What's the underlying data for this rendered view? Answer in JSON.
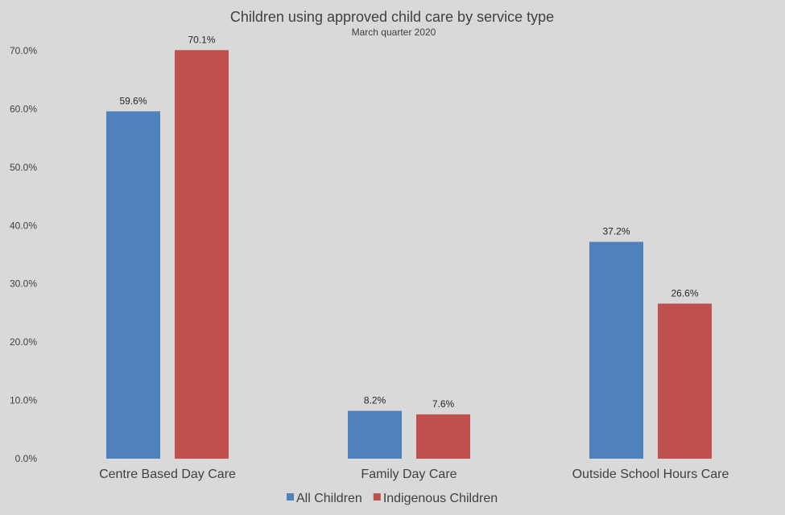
{
  "chart_data": {
    "type": "bar",
    "title": "Children using approved child care by service type",
    "subtitle": "March quarter 2020",
    "xlabel": "",
    "ylabel": "",
    "categories": [
      "Centre Based Day Care",
      "Family Day Care",
      "Outside School Hours Care"
    ],
    "series": [
      {
        "name": "All Children",
        "color": "#4f81bd",
        "values": [
          59.6,
          8.2,
          37.2
        ],
        "labels": [
          "59.6%",
          "8.2%",
          "37.2%"
        ]
      },
      {
        "name": "Indigenous Children",
        "color": "#c0504d",
        "values": [
          70.1,
          7.6,
          26.6
        ],
        "labels": [
          "70.1%",
          "7.6%",
          "26.6%"
        ]
      }
    ],
    "ylim": [
      0,
      70
    ],
    "yticks": [
      0,
      10,
      20,
      30,
      40,
      50,
      60,
      70
    ],
    "ytick_labels": [
      "0.0%",
      "10.0%",
      "20.0%",
      "30.0%",
      "40.0%",
      "50.0%",
      "60.0%",
      "70.0%"
    ],
    "grid": false,
    "legend_position": "bottom",
    "background": "#d9d9d9"
  }
}
